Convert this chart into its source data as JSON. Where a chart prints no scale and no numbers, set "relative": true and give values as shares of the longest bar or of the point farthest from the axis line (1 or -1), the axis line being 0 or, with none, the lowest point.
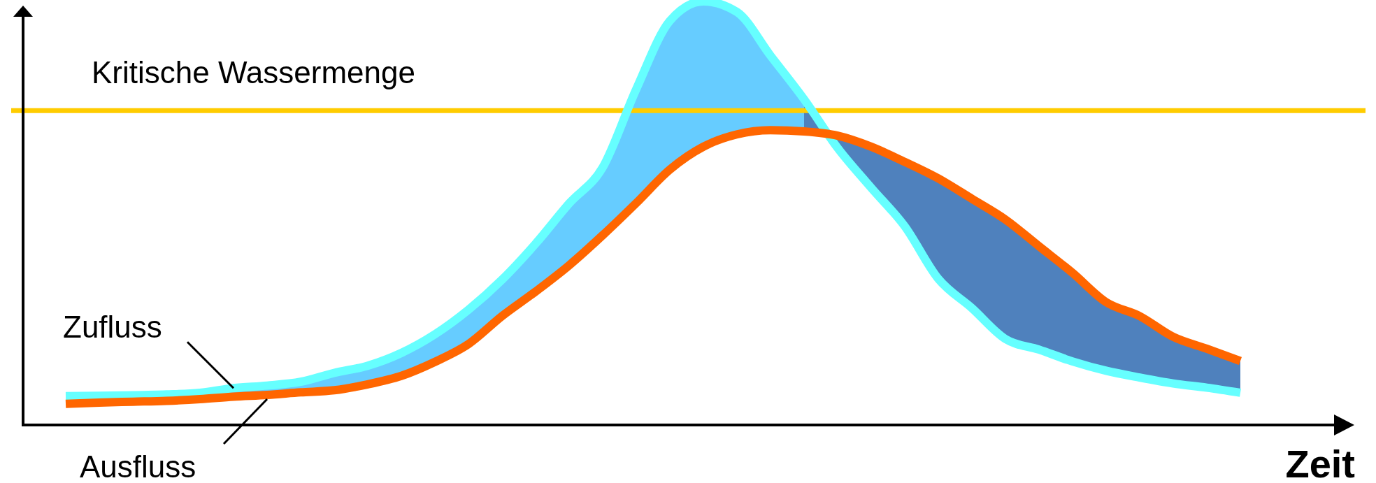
{
  "chart_data": {
    "type": "line",
    "xlabel": "Zeit",
    "relative": true,
    "tick_labels": false,
    "categories": [
      null,
      null,
      null,
      null,
      null,
      null,
      null,
      null,
      null,
      null,
      null,
      null,
      null,
      null,
      null,
      null,
      null,
      null,
      null,
      null,
      null,
      null,
      null,
      null,
      null,
      null,
      null,
      null,
      null,
      null,
      null,
      null,
      null,
      null,
      null,
      null
    ],
    "series": [
      {
        "name": "Zufluss",
        "color": "#66ffff",
        "values": [
          0.068,
          0.069,
          0.07,
          0.072,
          0.076,
          0.087,
          0.093,
          0.102,
          0.123,
          0.14,
          0.17,
          0.214,
          0.272,
          0.343,
          0.428,
          0.523,
          0.608,
          0.793,
          0.954,
          1.0,
          0.975,
          0.872,
          0.769,
          0.654,
          0.56,
          0.469,
          0.345,
          0.276,
          0.203,
          0.178,
          0.15,
          0.128,
          0.112,
          0.098,
          0.088,
          0.076
        ],
        "lower": [
          0.05,
          0.053,
          0.055,
          0.057,
          0.061,
          0.067,
          0.071,
          0.077,
          0.082,
          0.096,
          0.116,
          0.149,
          0.191,
          0.257,
          0.315,
          0.377,
          0.448,
          0.524,
          0.603,
          0.657,
          0.686,
          0.696,
          0.693,
          0.683,
          null,
          null,
          null,
          null,
          null,
          null,
          null,
          null,
          null,
          null,
          null,
          null
        ],
        "upper": [
          0.068,
          0.069,
          0.07,
          0.072,
          0.076,
          0.087,
          0.093,
          0.102,
          0.123,
          0.14,
          0.17,
          0.214,
          0.272,
          0.343,
          0.428,
          0.523,
          0.608,
          0.793,
          0.954,
          1.0,
          0.975,
          0.872,
          0.769,
          0.654,
          null,
          null,
          null,
          null,
          null,
          null,
          null,
          null,
          null,
          null,
          null,
          null
        ]
      },
      {
        "name": "Ausfluss",
        "color": "#ff6600",
        "values": [
          0.05,
          0.053,
          0.055,
          0.057,
          0.061,
          0.067,
          0.071,
          0.077,
          0.082,
          0.096,
          0.116,
          0.149,
          0.191,
          0.257,
          0.315,
          0.377,
          0.448,
          0.524,
          0.603,
          0.657,
          0.686,
          0.696,
          0.693,
          0.683,
          0.657,
          0.621,
          0.582,
          0.534,
          0.485,
          0.422,
          0.359,
          0.29,
          0.257,
          0.208,
          0.18,
          0.151
        ],
        "lower": [
          null,
          null,
          null,
          null,
          null,
          null,
          null,
          null,
          null,
          null,
          null,
          null,
          null,
          null,
          null,
          null,
          null,
          null,
          null,
          null,
          null,
          null,
          0.769,
          0.654,
          0.56,
          0.469,
          0.345,
          0.276,
          0.203,
          0.178,
          0.15,
          0.128,
          0.112,
          0.098,
          0.088,
          0.076
        ],
        "upper": [
          null,
          null,
          null,
          null,
          null,
          null,
          null,
          null,
          null,
          null,
          null,
          null,
          null,
          null,
          null,
          null,
          null,
          null,
          null,
          null,
          null,
          null,
          0.693,
          0.683,
          0.657,
          0.621,
          0.582,
          0.534,
          0.485,
          0.422,
          0.359,
          0.29,
          0.257,
          0.208,
          0.18,
          0.151
        ]
      }
    ],
    "ref_lines": [
      {
        "axis": "y",
        "value": 0.742,
        "label": "Kritische Wassermenge",
        "color": "#ffcc00"
      }
    ]
  }
}
